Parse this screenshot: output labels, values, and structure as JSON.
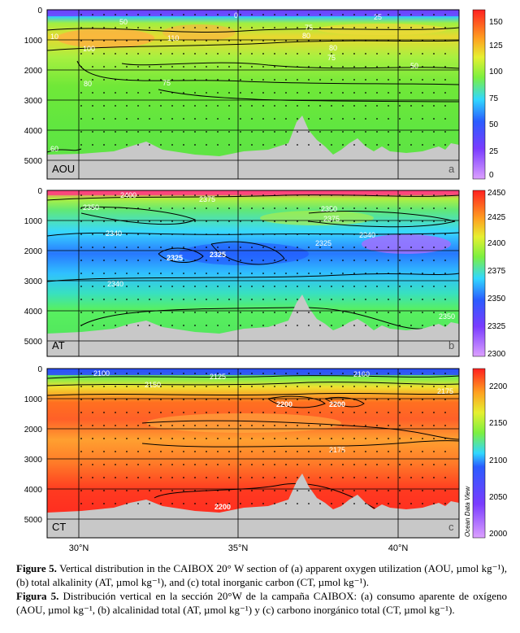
{
  "chart_data": [
    {
      "type": "heatmap",
      "panel_label": "AOU",
      "panel_letter": "a",
      "y_ticks": [
        "0",
        "1000",
        "2000",
        "3000",
        "4000",
        "5000"
      ],
      "colorbar": {
        "ticks": [
          "0",
          "25",
          "50",
          "75",
          "100",
          "125",
          "150"
        ],
        "range": [
          0,
          160
        ]
      },
      "contour_labels": [
        "50",
        "0",
        "25",
        "75",
        "80",
        "10",
        "110",
        "100",
        "80",
        "75",
        "50",
        "80",
        "75",
        "60"
      ]
    },
    {
      "type": "heatmap",
      "panel_label": "AT",
      "panel_letter": "b",
      "y_ticks": [
        "0",
        "1000",
        "2000",
        "3000",
        "4000",
        "5000"
      ],
      "colorbar": {
        "ticks": [
          "2300",
          "2325",
          "2350",
          "2375",
          "2400",
          "2425",
          "2450"
        ],
        "range": [
          2300,
          2450
        ]
      },
      "contour_labels": [
        "2400",
        "2375",
        "2350",
        "2350",
        "2375",
        "2340",
        "2325",
        "2340",
        "2325",
        "2325",
        "2340",
        "2350"
      ]
    },
    {
      "type": "heatmap",
      "panel_label": "CT",
      "panel_letter": "c",
      "y_ticks": [
        "0",
        "1000",
        "2000",
        "3000",
        "4000",
        "5000"
      ],
      "colorbar": {
        "ticks": [
          "2000",
          "2050",
          "2100",
          "2150",
          "2200"
        ],
        "range": [
          2000,
          2225
        ]
      },
      "contour_labels": [
        "2100",
        "2125",
        "2150",
        "2100",
        "2175",
        "2200",
        "2200",
        "2175",
        "2200"
      ],
      "watermark": "Ocean Data View"
    }
  ],
  "x_axis_ticks": [
    "30°N",
    "35°N",
    "40°N"
  ],
  "colors": {
    "seafloor": "#c8c8c8",
    "grid": "#000000"
  },
  "caption_en": {
    "label": "Figure 5.",
    "text": "Vertical distribution in the CAIBOX 20° W section of (a) apparent oxygen utilization (AOU, µmol kg⁻¹), (b) total alkalinity (AT, µmol kg⁻¹), and (c) total inorganic carbon (CT, µmol kg⁻¹)."
  },
  "caption_es": {
    "label": "Figura 5.",
    "text": "Distribución vertical en la sección 20°W de la campaña CAIBOX: (a) consumo aparente de oxígeno (AOU, µmol kg⁻¹, (b) alcalinidad total (AT, µmol kg⁻¹) y (c) carbono inorgánico total (CT, µmol kg⁻¹)."
  }
}
